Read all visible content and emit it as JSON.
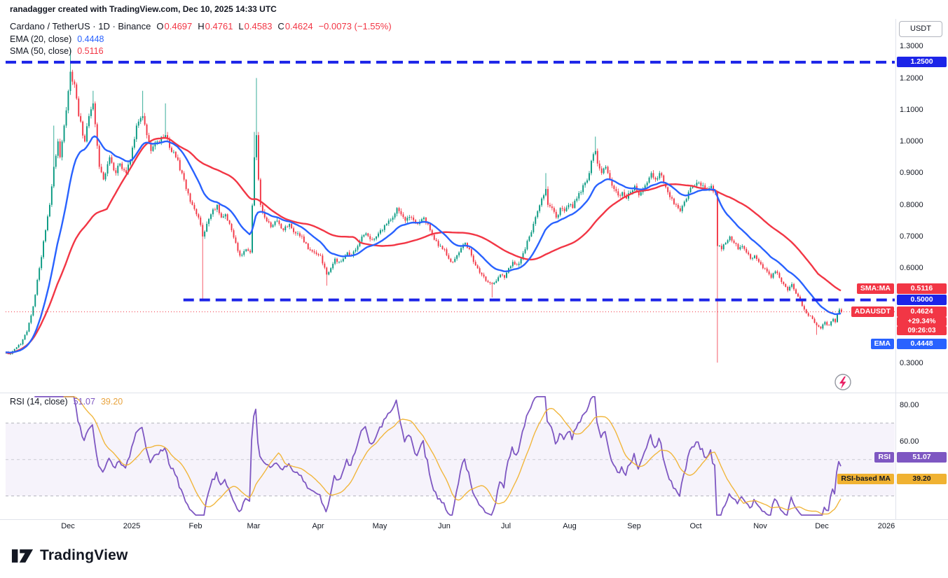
{
  "attribution": "ranadagger created with TradingView.com, Dec 10, 2025 14:33 UTC",
  "symbol": {
    "title": "Cardano / TetherUS · 1D · Binance",
    "open_label": "O",
    "open": "0.4697",
    "high_label": "H",
    "high": "0.4761",
    "low_label": "L",
    "low": "0.4583",
    "close_label": "C",
    "close": "0.4624",
    "change": "−0.0073 (−1.55%)"
  },
  "indicators": {
    "ema": {
      "label": "EMA (20, close)",
      "value": "0.4448"
    },
    "sma": {
      "label": "SMA (50, close)",
      "value": "0.5116"
    }
  },
  "rsi_pane": {
    "label": "RSI (14, close)",
    "value": "51.07",
    "ma_value": "39.20",
    "badge_label": "RSI",
    "ma_badge_label": "RSI-based MA",
    "ticks": [
      {
        "text": "80.00",
        "value": 80
      },
      {
        "text": "60.00",
        "value": 60
      }
    ]
  },
  "axis": {
    "currency": "USDT",
    "ticks": [
      {
        "text": "1.3000",
        "value": 1.3
      },
      {
        "text": "1.2000",
        "value": 1.2
      },
      {
        "text": "1.1000",
        "value": 1.1
      },
      {
        "text": "1.0000",
        "value": 1.0
      },
      {
        "text": "0.9000",
        "value": 0.9
      },
      {
        "text": "0.8000",
        "value": 0.8
      },
      {
        "text": "0.7000",
        "value": 0.7
      },
      {
        "text": "0.6000",
        "value": 0.6
      },
      {
        "text": "0.3000",
        "value": 0.3
      }
    ],
    "labels": [
      {
        "kind": "level",
        "text": "1.2500",
        "value": 1.25
      },
      {
        "kind": "sma",
        "label": "SMA:MA",
        "text": "0.5116",
        "value": 0.5116
      },
      {
        "kind": "level",
        "text": "0.5000",
        "value": 0.5
      },
      {
        "kind": "last",
        "label": "ADAUSDT",
        "text": "0.4624",
        "value": 0.4624,
        "sub": [
          "+29.34%",
          "09:26:03"
        ]
      },
      {
        "kind": "ema",
        "label": "EMA",
        "text": "0.4448",
        "value": 0.4448
      }
    ]
  },
  "time_axis": [
    {
      "label": "Dec",
      "day": 30
    },
    {
      "label": "2025",
      "day": 61
    },
    {
      "label": "Feb",
      "day": 92
    },
    {
      "label": "Mar",
      "day": 120
    },
    {
      "label": "Apr",
      "day": 151
    },
    {
      "label": "May",
      "day": 181
    },
    {
      "label": "Jun",
      "day": 212
    },
    {
      "label": "Jul",
      "day": 242
    },
    {
      "label": "Aug",
      "day": 273
    },
    {
      "label": "Sep",
      "day": 304
    },
    {
      "label": "Oct",
      "day": 334
    },
    {
      "label": "Nov",
      "day": 365
    },
    {
      "label": "Dec",
      "day": 395
    },
    {
      "label": "2026",
      "day": 426
    }
  ],
  "footer": {
    "brand": "TradingView"
  },
  "colors": {
    "up": "#089981",
    "down": "#F23645",
    "ema": "#2962FF",
    "sma": "#F23645",
    "level": "#1C24E8",
    "rsi": "#7E57C2",
    "rsi_ma": "#F0B232",
    "axis_text": "#131722",
    "separator": "#E0E3EB",
    "band_fill": "#7E57C2",
    "flash": "#E91E63",
    "flash_ring": "#9598A1"
  },
  "chart_data": {
    "type": "candlestick",
    "symbol": "ADAUSDT",
    "interval": "1D",
    "exchange": "Binance",
    "title": "Cardano / TetherUS daily with EMA(20), SMA(50), RSI(14) and RSI-based MA(14)",
    "last_price": 0.4624,
    "last_day": 404,
    "price_axis_range": [
      0.21,
      1.38
    ],
    "rsi_axis_range": [
      18,
      86
    ],
    "levels": [
      {
        "name": "resistance",
        "price": 1.25,
        "from_day": 0
      },
      {
        "name": "support",
        "price": 0.5,
        "from_day": 86
      }
    ],
    "rsi_bands": [
      70,
      50,
      30
    ],
    "indicators": {
      "ema_period": 20,
      "sma_period": 50,
      "rsi_period": 14,
      "rsi_ma_period": 14
    },
    "close_waypoints": [
      [
        0,
        0.335
      ],
      [
        2,
        0.33
      ],
      [
        4,
        0.345
      ],
      [
        7,
        0.36
      ],
      [
        10,
        0.4
      ],
      [
        13,
        0.48
      ],
      [
        16,
        0.6
      ],
      [
        19,
        0.72
      ],
      [
        21,
        0.8
      ],
      [
        23,
        0.92
      ],
      [
        25,
        1.0
      ],
      [
        26,
        0.95
      ],
      [
        28,
        1.05
      ],
      [
        31,
        1.22
      ],
      [
        33,
        1.18
      ],
      [
        35,
        1.08
      ],
      [
        38,
        1.0
      ],
      [
        40,
        1.08
      ],
      [
        42,
        1.12
      ],
      [
        45,
        0.92
      ],
      [
        47,
        0.88
      ],
      [
        50,
        0.95
      ],
      [
        53,
        0.9
      ],
      [
        55,
        0.93
      ],
      [
        58,
        0.9
      ],
      [
        60,
        0.94
      ],
      [
        63,
        1.05
      ],
      [
        66,
        1.08
      ],
      [
        68,
        1.02
      ],
      [
        70,
        0.97
      ],
      [
        73,
        1.0
      ],
      [
        77,
        1.02
      ],
      [
        79,
        0.98
      ],
      [
        82,
        0.95
      ],
      [
        85,
        0.9
      ],
      [
        87,
        0.85
      ],
      [
        90,
        0.8
      ],
      [
        93,
        0.76
      ],
      [
        95,
        0.7
      ],
      [
        97,
        0.74
      ],
      [
        99,
        0.77
      ],
      [
        102,
        0.8
      ],
      [
        104,
        0.76
      ],
      [
        106,
        0.77
      ],
      [
        109,
        0.72
      ],
      [
        111,
        0.68
      ],
      [
        113,
        0.64
      ],
      [
        116,
        0.66
      ],
      [
        118,
        0.65
      ],
      [
        120,
        0.95
      ],
      [
        121,
        1.02
      ],
      [
        122,
        0.88
      ],
      [
        123,
        0.8
      ],
      [
        125,
        0.76
      ],
      [
        128,
        0.73
      ],
      [
        131,
        0.75
      ],
      [
        134,
        0.72
      ],
      [
        137,
        0.74
      ],
      [
        140,
        0.71
      ],
      [
        143,
        0.7
      ],
      [
        146,
        0.66
      ],
      [
        149,
        0.65
      ],
      [
        152,
        0.64
      ],
      [
        155,
        0.58
      ],
      [
        157,
        0.6
      ],
      [
        159,
        0.63
      ],
      [
        161,
        0.62
      ],
      [
        163,
        0.63
      ],
      [
        165,
        0.65
      ],
      [
        167,
        0.64
      ],
      [
        170,
        0.67
      ],
      [
        172,
        0.7
      ],
      [
        174,
        0.71
      ],
      [
        177,
        0.69
      ],
      [
        179,
        0.7
      ],
      [
        181,
        0.72
      ],
      [
        184,
        0.74
      ],
      [
        187,
        0.76
      ],
      [
        189,
        0.79
      ],
      [
        191,
        0.77
      ],
      [
        193,
        0.75
      ],
      [
        196,
        0.76
      ],
      [
        199,
        0.74
      ],
      [
        202,
        0.76
      ],
      [
        205,
        0.72
      ],
      [
        207,
        0.69
      ],
      [
        209,
        0.67
      ],
      [
        212,
        0.66
      ],
      [
        214,
        0.63
      ],
      [
        216,
        0.62
      ],
      [
        219,
        0.65
      ],
      [
        222,
        0.68
      ],
      [
        224,
        0.66
      ],
      [
        226,
        0.62
      ],
      [
        228,
        0.6
      ],
      [
        230,
        0.58
      ],
      [
        232,
        0.56
      ],
      [
        235,
        0.55
      ],
      [
        237,
        0.56
      ],
      [
        239,
        0.58
      ],
      [
        241,
        0.57
      ],
      [
        243,
        0.6
      ],
      [
        245,
        0.62
      ],
      [
        247,
        0.61
      ],
      [
        249,
        0.63
      ],
      [
        251,
        0.66
      ],
      [
        253,
        0.7
      ],
      [
        255,
        0.74
      ],
      [
        257,
        0.78
      ],
      [
        259,
        0.82
      ],
      [
        261,
        0.85
      ],
      [
        262,
        0.8
      ],
      [
        264,
        0.79
      ],
      [
        266,
        0.76
      ],
      [
        268,
        0.79
      ],
      [
        270,
        0.78
      ],
      [
        272,
        0.8
      ],
      [
        274,
        0.79
      ],
      [
        276,
        0.82
      ],
      [
        278,
        0.84
      ],
      [
        280,
        0.87
      ],
      [
        282,
        0.9
      ],
      [
        284,
        0.96
      ],
      [
        285,
        0.97
      ],
      [
        286,
        0.93
      ],
      [
        288,
        0.9
      ],
      [
        290,
        0.92
      ],
      [
        292,
        0.88
      ],
      [
        294,
        0.85
      ],
      [
        296,
        0.83
      ],
      [
        298,
        0.84
      ],
      [
        300,
        0.82
      ],
      [
        302,
        0.84
      ],
      [
        304,
        0.86
      ],
      [
        306,
        0.83
      ],
      [
        308,
        0.85
      ],
      [
        310,
        0.87
      ],
      [
        312,
        0.9
      ],
      [
        314,
        0.88
      ],
      [
        316,
        0.9
      ],
      [
        318,
        0.87
      ],
      [
        320,
        0.84
      ],
      [
        322,
        0.82
      ],
      [
        324,
        0.8
      ],
      [
        326,
        0.78
      ],
      [
        328,
        0.81
      ],
      [
        330,
        0.84
      ],
      [
        332,
        0.86
      ],
      [
        334,
        0.87
      ],
      [
        336,
        0.86
      ],
      [
        338,
        0.85
      ],
      [
        341,
        0.86
      ],
      [
        343,
        0.84
      ],
      [
        344,
        0.67
      ],
      [
        346,
        0.66
      ],
      [
        348,
        0.68
      ],
      [
        350,
        0.7
      ],
      [
        352,
        0.68
      ],
      [
        354,
        0.66
      ],
      [
        356,
        0.67
      ],
      [
        358,
        0.65
      ],
      [
        360,
        0.63
      ],
      [
        362,
        0.64
      ],
      [
        364,
        0.62
      ],
      [
        366,
        0.6
      ],
      [
        368,
        0.59
      ],
      [
        370,
        0.57
      ],
      [
        372,
        0.59
      ],
      [
        374,
        0.57
      ],
      [
        376,
        0.55
      ],
      [
        378,
        0.53
      ],
      [
        380,
        0.55
      ],
      [
        382,
        0.52
      ],
      [
        384,
        0.5
      ],
      [
        386,
        0.47
      ],
      [
        388,
        0.45
      ],
      [
        390,
        0.44
      ],
      [
        392,
        0.42
      ],
      [
        394,
        0.41
      ],
      [
        396,
        0.43
      ],
      [
        398,
        0.42
      ],
      [
        400,
        0.44
      ],
      [
        401,
        0.43
      ],
      [
        402,
        0.455
      ],
      [
        403,
        0.47
      ],
      [
        404,
        0.4624
      ]
    ],
    "wick_overrides": {
      "23": {
        "h": 1.05
      },
      "31": {
        "h": 1.29
      },
      "42": {
        "h": 1.16
      },
      "66": {
        "h": 1.16
      },
      "77": {
        "h": 1.12
      },
      "95": {
        "l": 0.5
      },
      "120": {
        "h": 1.03
      },
      "121": {
        "h": 1.2
      },
      "155": {
        "l": 0.545
      },
      "235": {
        "l": 0.508
      },
      "261": {
        "h": 0.9
      },
      "285": {
        "h": 1.015
      },
      "344": {
        "l": 0.302
      },
      "392": {
        "l": 0.39
      }
    }
  }
}
